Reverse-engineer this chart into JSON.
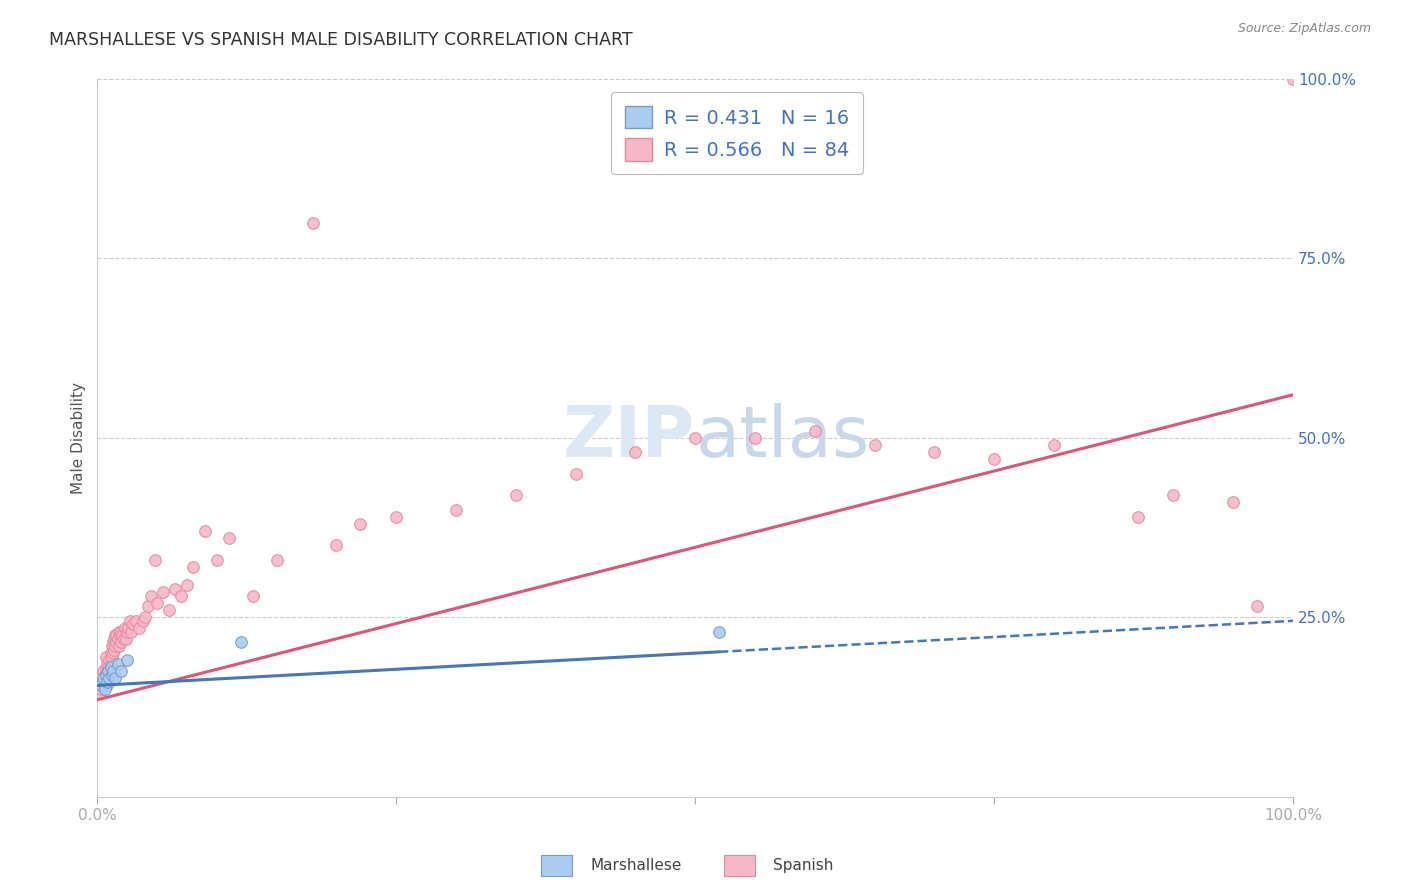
{
  "title": "MARSHALLESE VS SPANISH MALE DISABILITY CORRELATION CHART",
  "source": "Source: ZipAtlas.com",
  "ylabel": "Male Disability",
  "xlim": [
    0.0,
    1.0
  ],
  "ylim": [
    0.0,
    1.0
  ],
  "marshallese_color": "#aaccee",
  "marshallese_edge_color": "#7799cc",
  "spanish_color": "#f5b8c8",
  "spanish_edge_color": "#e888a0",
  "marshallese_line_color": "#4477bb",
  "spanish_line_color": "#dd5577",
  "legend_R_marshallese": "R = 0.431",
  "legend_N_marshallese": "N = 16",
  "legend_R_spanish": "R = 0.566",
  "legend_N_spanish": "N = 84",
  "background_color": "#ffffff",
  "grid_color": "#cccccc",
  "axis_color": "#4472c4",
  "label_color": "#555555",
  "title_color": "#333333",
  "source_color": "#888888",
  "watermark_color": "#dde8f5",
  "marshallese_x": [
    0.003,
    0.005,
    0.006,
    0.007,
    0.008,
    0.009,
    0.01,
    0.011,
    0.012,
    0.013,
    0.015,
    0.017,
    0.02,
    0.025,
    0.12,
    0.52
  ],
  "marshallese_y": [
    0.155,
    0.165,
    0.15,
    0.17,
    0.16,
    0.175,
    0.165,
    0.18,
    0.17,
    0.175,
    0.165,
    0.185,
    0.175,
    0.19,
    0.215,
    0.23
  ],
  "spanish_x": [
    0.002,
    0.003,
    0.004,
    0.004,
    0.005,
    0.005,
    0.006,
    0.006,
    0.007,
    0.007,
    0.007,
    0.008,
    0.008,
    0.008,
    0.009,
    0.009,
    0.01,
    0.01,
    0.011,
    0.011,
    0.012,
    0.012,
    0.013,
    0.013,
    0.014,
    0.014,
    0.015,
    0.015,
    0.016,
    0.016,
    0.017,
    0.018,
    0.018,
    0.019,
    0.02,
    0.02,
    0.021,
    0.022,
    0.023,
    0.024,
    0.025,
    0.026,
    0.027,
    0.028,
    0.03,
    0.032,
    0.035,
    0.038,
    0.04,
    0.042,
    0.045,
    0.048,
    0.05,
    0.055,
    0.06,
    0.065,
    0.07,
    0.075,
    0.08,
    0.09,
    0.1,
    0.11,
    0.13,
    0.15,
    0.18,
    0.2,
    0.22,
    0.25,
    0.3,
    0.35,
    0.4,
    0.45,
    0.5,
    0.55,
    0.6,
    0.65,
    0.7,
    0.75,
    0.8,
    0.87,
    0.9,
    0.95,
    0.97,
    1.0
  ],
  "spanish_y": [
    0.145,
    0.15,
    0.155,
    0.16,
    0.16,
    0.175,
    0.165,
    0.17,
    0.165,
    0.175,
    0.195,
    0.155,
    0.17,
    0.185,
    0.175,
    0.18,
    0.17,
    0.19,
    0.2,
    0.185,
    0.195,
    0.21,
    0.2,
    0.215,
    0.205,
    0.22,
    0.21,
    0.225,
    0.215,
    0.225,
    0.22,
    0.21,
    0.23,
    0.225,
    0.215,
    0.23,
    0.225,
    0.22,
    0.235,
    0.22,
    0.23,
    0.235,
    0.245,
    0.23,
    0.24,
    0.245,
    0.235,
    0.245,
    0.25,
    0.265,
    0.28,
    0.33,
    0.27,
    0.285,
    0.26,
    0.29,
    0.28,
    0.295,
    0.32,
    0.37,
    0.33,
    0.36,
    0.28,
    0.33,
    0.8,
    0.35,
    0.38,
    0.39,
    0.4,
    0.42,
    0.45,
    0.48,
    0.5,
    0.5,
    0.51,
    0.49,
    0.48,
    0.47,
    0.49,
    0.39,
    0.42,
    0.41,
    0.265,
    1.0
  ],
  "trend_x_start": 0.0,
  "trend_x_end": 1.0,
  "spanish_trend_y_start": 0.135,
  "spanish_trend_y_end": 0.56,
  "marsh_trend_y_start": 0.155,
  "marsh_trend_y_end": 0.245
}
